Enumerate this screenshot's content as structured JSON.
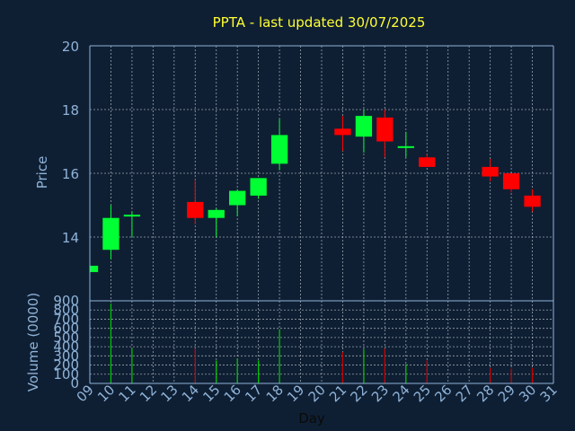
{
  "title": "PPTA - last updated 30/07/2025",
  "colors": {
    "background": "#0f1f33",
    "axis": "#8fb3d9",
    "grid": "#d0d8e0",
    "title": "#ffff33",
    "up": "#00ff33",
    "down": "#ff0000",
    "volume_up": "#00cc00",
    "volume_down": "#cc0000"
  },
  "chart_data": {
    "type": "candlestick",
    "title": "PPTA - last updated 30/07/2025",
    "price_axis": {
      "label": "Price",
      "ylim": [
        12,
        20
      ],
      "ticks": [
        14,
        16,
        18,
        20
      ]
    },
    "volume_axis": {
      "label": "Volume (0000)",
      "ylim": [
        0,
        900
      ],
      "ticks": [
        0,
        100,
        200,
        300,
        400,
        500,
        600,
        700,
        800,
        900
      ]
    },
    "x_axis": {
      "label": "Day",
      "ticks": [
        "09",
        "10",
        "11",
        "12",
        "13",
        "14",
        "15",
        "16",
        "17",
        "18",
        "19",
        "20",
        "21",
        "22",
        "23",
        "24",
        "25",
        "26",
        "27",
        "28",
        "29",
        "30",
        "31"
      ]
    },
    "grid": true,
    "candles": [
      {
        "day": "09",
        "open": 12.9,
        "close": 13.1,
        "high": 13.1,
        "low": 12.9
      },
      {
        "day": "10",
        "open": 13.6,
        "close": 14.6,
        "high": 15.0,
        "low": 13.3
      },
      {
        "day": "11",
        "open": 14.65,
        "close": 14.7,
        "high": 14.8,
        "low": 14.0
      },
      {
        "day": "14",
        "open": 15.1,
        "close": 14.6,
        "high": 15.8,
        "low": 14.4
      },
      {
        "day": "15",
        "open": 14.6,
        "close": 14.85,
        "high": 14.9,
        "low": 14.0
      },
      {
        "day": "16",
        "open": 15.0,
        "close": 15.45,
        "high": 15.5,
        "low": 14.65
      },
      {
        "day": "17",
        "open": 15.3,
        "close": 15.85,
        "high": 15.85,
        "low": 15.2
      },
      {
        "day": "18",
        "open": 16.3,
        "close": 17.2,
        "high": 17.7,
        "low": 16.1
      },
      {
        "day": "21",
        "open": 17.4,
        "close": 17.2,
        "high": 17.8,
        "low": 16.7
      },
      {
        "day": "22",
        "open": 17.15,
        "close": 17.8,
        "high": 18.0,
        "low": 16.65
      },
      {
        "day": "23",
        "open": 17.75,
        "close": 17.0,
        "high": 18.0,
        "low": 16.5
      },
      {
        "day": "24",
        "open": 16.85,
        "close": 16.85,
        "high": 17.3,
        "low": 16.5
      },
      {
        "day": "25",
        "open": 16.5,
        "close": 16.2,
        "high": 16.6,
        "low": 16.2
      },
      {
        "day": "28",
        "open": 16.2,
        "close": 15.9,
        "high": 16.45,
        "low": 15.75
      },
      {
        "day": "29",
        "open": 16.0,
        "close": 15.5,
        "high": 16.0,
        "low": 15.4
      },
      {
        "day": "30",
        "open": 15.3,
        "close": 14.95,
        "high": 15.5,
        "low": 14.8
      }
    ],
    "volume": [
      {
        "day": "09",
        "value": 0,
        "direction": "up"
      },
      {
        "day": "10",
        "value": 870,
        "direction": "up"
      },
      {
        "day": "11",
        "value": 380,
        "direction": "up"
      },
      {
        "day": "14",
        "value": 380,
        "direction": "down"
      },
      {
        "day": "15",
        "value": 250,
        "direction": "up"
      },
      {
        "day": "16",
        "value": 270,
        "direction": "up"
      },
      {
        "day": "17",
        "value": 250,
        "direction": "up"
      },
      {
        "day": "18",
        "value": 590,
        "direction": "up"
      },
      {
        "day": "21",
        "value": 340,
        "direction": "down"
      },
      {
        "day": "22",
        "value": 370,
        "direction": "up"
      },
      {
        "day": "23",
        "value": 380,
        "direction": "down"
      },
      {
        "day": "24",
        "value": 210,
        "direction": "up"
      },
      {
        "day": "25",
        "value": 250,
        "direction": "down"
      },
      {
        "day": "28",
        "value": 170,
        "direction": "down"
      },
      {
        "day": "29",
        "value": 160,
        "direction": "down"
      },
      {
        "day": "30",
        "value": 170,
        "direction": "down"
      }
    ]
  }
}
